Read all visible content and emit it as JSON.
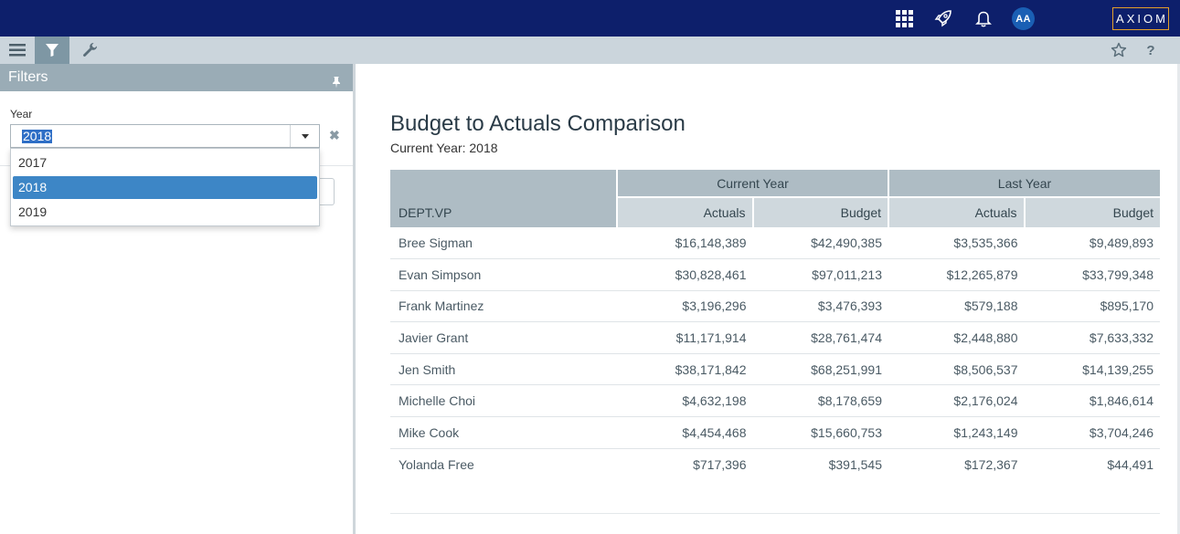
{
  "topbar": {
    "avatar_initials": "AA",
    "logo_text": "AXIOM",
    "icons": [
      "apps-grid-icon",
      "rocket-icon",
      "bell-icon"
    ],
    "colors": {
      "background": "#0d1f6b",
      "logo_border": "#e3a02a",
      "avatar": "#1a5fb4"
    }
  },
  "toolbar": {
    "icons": [
      "hamburger-menu-icon",
      "filter-icon",
      "wrench-icon",
      "star-icon",
      "help-icon"
    ],
    "help_label": "?"
  },
  "filters": {
    "title": "Filters",
    "year_label": "Year",
    "year_value": "2018",
    "clear_label": "✖",
    "options": [
      "2017",
      "2018",
      "2019"
    ],
    "selected_option": "2018"
  },
  "report": {
    "title": "Budget to Actuals Comparison",
    "subtitle": "Current Year: 2018",
    "headers": {
      "dept": "DEPT.VP",
      "current_year": "Current Year",
      "last_year": "Last Year",
      "actuals": "Actuals",
      "budget": "Budget"
    },
    "rows": [
      {
        "name": "Bree Sigman",
        "cy_actuals": "$16,148,389",
        "cy_budget": "$42,490,385",
        "ly_actuals": "$3,535,366",
        "ly_budget": "$9,489,893"
      },
      {
        "name": "Evan Simpson",
        "cy_actuals": "$30,828,461",
        "cy_budget": "$97,011,213",
        "ly_actuals": "$12,265,879",
        "ly_budget": "$33,799,348"
      },
      {
        "name": "Frank Martinez",
        "cy_actuals": "$3,196,296",
        "cy_budget": "$3,476,393",
        "ly_actuals": "$579,188",
        "ly_budget": "$895,170"
      },
      {
        "name": "Javier Grant",
        "cy_actuals": "$11,171,914",
        "cy_budget": "$28,761,474",
        "ly_actuals": "$2,448,880",
        "ly_budget": "$7,633,332"
      },
      {
        "name": "Jen Smith",
        "cy_actuals": "$38,171,842",
        "cy_budget": "$68,251,991",
        "ly_actuals": "$8,506,537",
        "ly_budget": "$14,139,255"
      },
      {
        "name": "Michelle Choi",
        "cy_actuals": "$4,632,198",
        "cy_budget": "$8,178,659",
        "ly_actuals": "$2,176,024",
        "ly_budget": "$1,846,614"
      },
      {
        "name": "Mike Cook",
        "cy_actuals": "$4,454,468",
        "cy_budget": "$15,660,753",
        "ly_actuals": "$1,243,149",
        "ly_budget": "$3,704,246"
      },
      {
        "name": "Yolanda Free",
        "cy_actuals": "$717,396",
        "cy_budget": "$391,545",
        "ly_actuals": "$172,367",
        "ly_budget": "$44,491"
      }
    ]
  }
}
